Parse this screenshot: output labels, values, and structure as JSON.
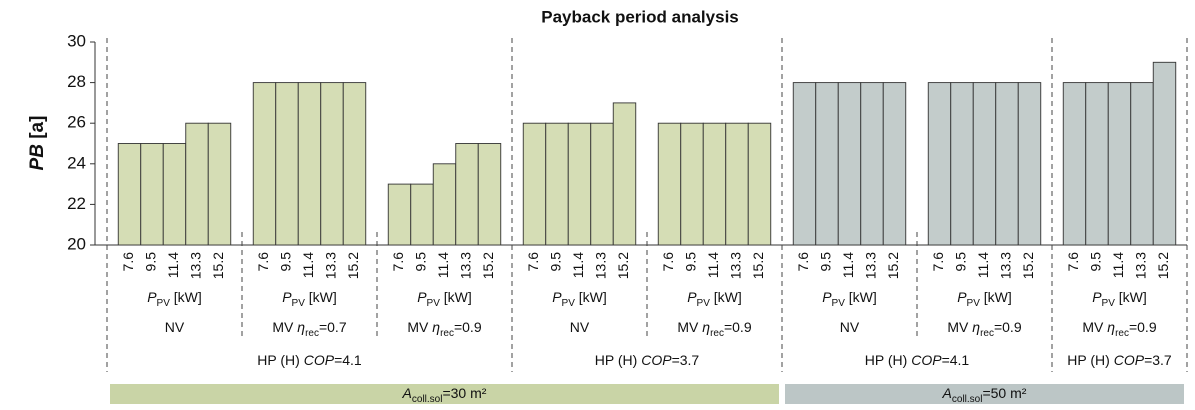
{
  "chart_data": {
    "type": "bar",
    "title": "Payback period analysis",
    "y_label": [
      {
        "text": "PB",
        "style": "italic"
      },
      {
        "text": " [a]"
      }
    ],
    "ylim": [
      20,
      30
    ],
    "yticks": [
      20,
      22,
      24,
      26,
      28,
      30
    ],
    "categories": [
      "7.6",
      "9.5",
      "11.4",
      "13.3",
      "15.2"
    ],
    "x_label": [
      {
        "text": "P",
        "style": "italic"
      },
      {
        "text": "PV",
        "style": "sub"
      },
      {
        "text": " [kW]"
      }
    ],
    "collectors": [
      {
        "label": [
          {
            "text": "A",
            "style": "italic"
          },
          {
            "text": "coll.sol",
            "style": "sub"
          },
          {
            "text": "=30 m²"
          }
        ],
        "color": "#d5ddb5",
        "band_color": "#c9d4a6",
        "heat_pumps": [
          {
            "label": [
              {
                "text": "HP (H) "
              },
              {
                "text": "COP",
                "style": "italic"
              },
              {
                "text": "=4.1"
              }
            ],
            "groups": [
              {
                "label": [
                  {
                    "text": "NV"
                  }
                ],
                "values": [
                  25,
                  25,
                  25,
                  26,
                  26
                ]
              },
              {
                "label": [
                  {
                    "text": "MV "
                  },
                  {
                    "text": "η",
                    "style": "italic"
                  },
                  {
                    "text": "rec",
                    "style": "sub"
                  },
                  {
                    "text": "=0.7"
                  }
                ],
                "values": [
                  28,
                  28,
                  28,
                  28,
                  28
                ]
              },
              {
                "label": [
                  {
                    "text": "MV "
                  },
                  {
                    "text": "η",
                    "style": "italic"
                  },
                  {
                    "text": "rec",
                    "style": "sub"
                  },
                  {
                    "text": "=0.9"
                  }
                ],
                "values": [
                  23,
                  23,
                  24,
                  25,
                  25
                ]
              }
            ]
          },
          {
            "label": [
              {
                "text": "HP (H) "
              },
              {
                "text": "COP",
                "style": "italic"
              },
              {
                "text": "=3.7"
              }
            ],
            "groups": [
              {
                "label": [
                  {
                    "text": "NV"
                  }
                ],
                "values": [
                  26,
                  26,
                  26,
                  26,
                  27
                ]
              },
              {
                "label": [
                  {
                    "text": "MV "
                  },
                  {
                    "text": "η",
                    "style": "italic"
                  },
                  {
                    "text": "rec",
                    "style": "sub"
                  },
                  {
                    "text": "=0.9"
                  }
                ],
                "values": [
                  26,
                  26,
                  26,
                  26,
                  26
                ]
              }
            ]
          }
        ]
      },
      {
        "label": [
          {
            "text": "A",
            "style": "italic"
          },
          {
            "text": "coll.sol",
            "style": "sub"
          },
          {
            "text": "=50 m²"
          }
        ],
        "color": "#c3cccb",
        "band_color": "#bcc6c6",
        "heat_pumps": [
          {
            "label": [
              {
                "text": "HP (H) "
              },
              {
                "text": "COP",
                "style": "italic"
              },
              {
                "text": "=4.1"
              }
            ],
            "groups": [
              {
                "label": [
                  {
                    "text": "NV"
                  }
                ],
                "values": [
                  28,
                  28,
                  28,
                  28,
                  28
                ]
              },
              {
                "label": [
                  {
                    "text": "MV "
                  },
                  {
                    "text": "η",
                    "style": "italic"
                  },
                  {
                    "text": "rec",
                    "style": "sub"
                  },
                  {
                    "text": "=0.9"
                  }
                ],
                "values": [
                  28,
                  28,
                  28,
                  28,
                  28
                ]
              }
            ]
          },
          {
            "label": [
              {
                "text": "HP (H) "
              },
              {
                "text": "COP",
                "style": "italic"
              },
              {
                "text": "=3.7"
              }
            ],
            "groups": [
              {
                "label": [
                  {
                    "text": "MV "
                  },
                  {
                    "text": "η",
                    "style": "italic"
                  },
                  {
                    "text": "rec",
                    "style": "sub"
                  },
                  {
                    "text": "=0.9"
                  }
                ],
                "values": [
                  28,
                  28,
                  28,
                  28,
                  29
                ]
              }
            ]
          }
        ]
      }
    ]
  }
}
